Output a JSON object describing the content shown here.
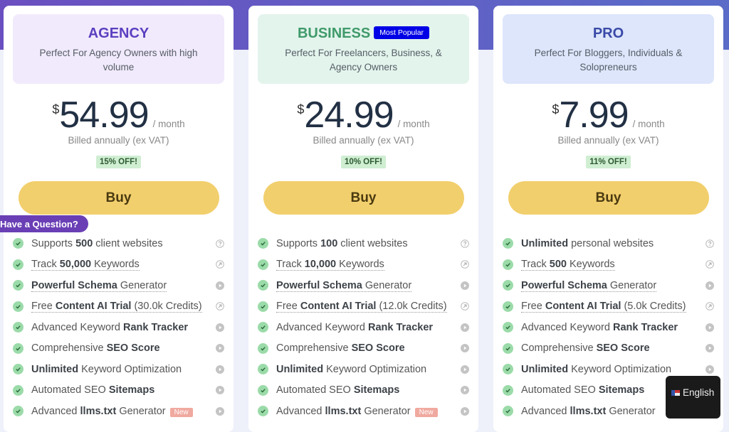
{
  "colors": {
    "agency": "#5b3fc0",
    "business": "#3f9a6a",
    "pro": "#3a4aa8",
    "buy": "#f2cf6d",
    "popular": "#0000e6"
  },
  "plans": [
    {
      "name": "AGENCY",
      "desc": "Perfect For Agency Owners with high volume",
      "currency": "$",
      "price": "54.99",
      "per": "/ month",
      "billed": "Billed annually (ex VAT)",
      "discount": "15% OFF!",
      "buy": "Buy",
      "features": [
        {
          "pre": "Supports ",
          "bold": "500",
          "post": " client websites",
          "icon": "q",
          "u": false
        },
        {
          "pre": "Track ",
          "bold": "50,000",
          "post": " Keywords",
          "icon": "a",
          "u": true
        },
        {
          "pre": "",
          "bold": "Powerful Schema",
          "post": " Generator",
          "icon": "p",
          "u": true
        },
        {
          "pre": "Free ",
          "bold": "Content AI Trial",
          "post": " (30.0k Credits)",
          "icon": "a",
          "u": true
        },
        {
          "pre": "Advanced Keyword ",
          "bold": "Rank Tracker",
          "post": "",
          "icon": "p",
          "u": false
        },
        {
          "pre": "Comprehensive ",
          "bold": "SEO Score",
          "post": "",
          "icon": "p",
          "u": false
        },
        {
          "pre": "",
          "bold": "Unlimited",
          "post": " Keyword Optimization",
          "icon": "p",
          "u": false
        },
        {
          "pre": "Automated SEO ",
          "bold": "Sitemaps",
          "post": "",
          "icon": "p",
          "u": false
        },
        {
          "pre": "Advanced ",
          "bold": "llms.txt",
          "post": " Generator",
          "icon": "p",
          "u": false,
          "badge": "New"
        }
      ]
    },
    {
      "name": "BUSINESS",
      "badge": "Most Popular",
      "desc": "Perfect For Freelancers, Business, & Agency Owners",
      "currency": "$",
      "price": "24.99",
      "per": "/ month",
      "billed": "Billed annually (ex VAT)",
      "discount": "10% OFF!",
      "buy": "Buy",
      "features": [
        {
          "pre": "Supports ",
          "bold": "100",
          "post": " client websites",
          "icon": "q",
          "u": false
        },
        {
          "pre": "Track ",
          "bold": "10,000",
          "post": " Keywords",
          "icon": "a",
          "u": true
        },
        {
          "pre": "",
          "bold": "Powerful Schema",
          "post": " Generator",
          "icon": "p",
          "u": true
        },
        {
          "pre": "Free ",
          "bold": "Content AI Trial",
          "post": " (12.0k Credits)",
          "icon": "a",
          "u": true
        },
        {
          "pre": "Advanced Keyword ",
          "bold": "Rank Tracker",
          "post": "",
          "icon": "p",
          "u": false
        },
        {
          "pre": "Comprehensive ",
          "bold": "SEO Score",
          "post": "",
          "icon": "p",
          "u": false
        },
        {
          "pre": "",
          "bold": "Unlimited",
          "post": " Keyword Optimization",
          "icon": "p",
          "u": false
        },
        {
          "pre": "Automated SEO ",
          "bold": "Sitemaps",
          "post": "",
          "icon": "p",
          "u": false
        },
        {
          "pre": "Advanced ",
          "bold": "llms.txt",
          "post": " Generator",
          "icon": "p",
          "u": false,
          "badge": "New"
        }
      ]
    },
    {
      "name": "PRO",
      "desc": "Perfect For Bloggers, Individuals & Solopreneurs",
      "currency": "$",
      "price": "7.99",
      "per": "/ month",
      "billed": "Billed annually (ex VAT)",
      "discount": "11% OFF!",
      "buy": "Buy",
      "features": [
        {
          "pre": "",
          "bold": "Unlimited",
          "post": " personal websites",
          "icon": "q",
          "u": false
        },
        {
          "pre": "Track ",
          "bold": "500",
          "post": " Keywords",
          "icon": "a",
          "u": true
        },
        {
          "pre": "",
          "bold": "Powerful Schema",
          "post": " Generator",
          "icon": "p",
          "u": true
        },
        {
          "pre": "Free ",
          "bold": "Content AI Trial",
          "post": " (5.0k Credits)",
          "icon": "a",
          "u": true
        },
        {
          "pre": "Advanced Keyword ",
          "bold": "Rank Tracker",
          "post": "",
          "icon": "p",
          "u": false
        },
        {
          "pre": "Comprehensive ",
          "bold": "SEO Score",
          "post": "",
          "icon": "p",
          "u": false
        },
        {
          "pre": "",
          "bold": "Unlimited",
          "post": " Keyword Optimization",
          "icon": "p",
          "u": false
        },
        {
          "pre": "Automated SEO ",
          "bold": "Sitemaps",
          "post": "",
          "icon": "p",
          "u": false
        },
        {
          "pre": "Advanced ",
          "bold": "llms.txt",
          "post": " Generator",
          "icon": "p",
          "u": false
        }
      ]
    }
  ],
  "question_button": "Have a Question?",
  "language": "English"
}
